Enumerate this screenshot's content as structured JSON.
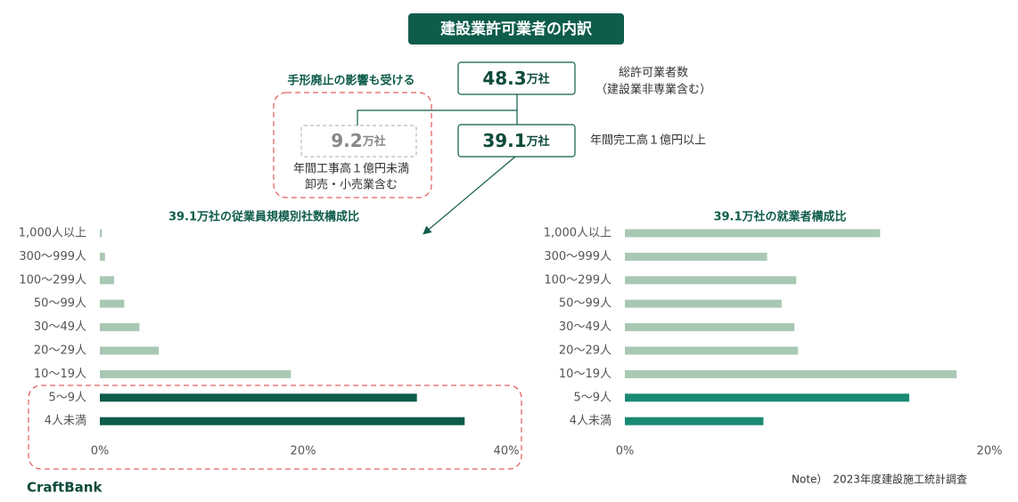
{
  "header": {
    "title": "建設業許可業者の内訳"
  },
  "boxes": {
    "total": {
      "value": 48.3,
      "unit": "万社",
      "label": "総許可業者数",
      "note": "（建設業非専業含む）"
    },
    "large": {
      "value": 39.1,
      "unit": "万社",
      "label": "年間完工高１億円以上"
    },
    "small": {
      "value": 9.2,
      "unit": "万社",
      "label": "年間工事高１億円未満",
      "note": "卸売・小売業含む",
      "callout": "手形廃止の影響も受ける"
    }
  },
  "chart_data": [
    {
      "type": "bar",
      "orientation": "horizontal",
      "title": "39.1万社の従業員規模別社数構成比",
      "categories": [
        "1,000人以上",
        "300～999人",
        "100～299人",
        "50～99人",
        "30～49人",
        "20～29人",
        "10～19人",
        "5～9人",
        "4人未満"
      ],
      "values": [
        0.2,
        0.5,
        1.4,
        2.4,
        3.9,
        5.8,
        18.8,
        31.2,
        35.9
      ],
      "colors": [
        "#a9c8b4",
        "#a9c8b4",
        "#a9c8b4",
        "#a9c8b4",
        "#a9c8b4",
        "#a9c8b4",
        "#a9c8b4",
        "#0e5c4a",
        "#0e5c4a"
      ],
      "xlim": [
        0,
        40
      ],
      "xticks": [
        {
          "value": 0,
          "label": "0%"
        },
        {
          "value": 20,
          "label": "20%"
        },
        {
          "value": 40,
          "label": "40%"
        }
      ]
    },
    {
      "type": "bar",
      "orientation": "horizontal",
      "title": "39.1万社の就業者構成比",
      "categories": [
        "1,000人以上",
        "300～999人",
        "100～299人",
        "50～99人",
        "30～49人",
        "20～29人",
        "10～19人",
        "5～9人",
        "4人未満"
      ],
      "values": [
        14.0,
        7.8,
        9.4,
        8.6,
        9.3,
        9.5,
        18.2,
        15.6,
        7.6
      ],
      "colors": [
        "#a9c8b4",
        "#a9c8b4",
        "#a9c8b4",
        "#a9c8b4",
        "#a9c8b4",
        "#a9c8b4",
        "#a9c8b4",
        "#1a8a72",
        "#1a8a72"
      ],
      "xlim": [
        0,
        20
      ],
      "xticks": [
        {
          "value": 0,
          "label": "0%"
        },
        {
          "value": 20,
          "label": "20%"
        }
      ]
    }
  ],
  "footer": {
    "note": "Note）　2023年度建設施工統計調査",
    "brand": "CraftBank"
  }
}
